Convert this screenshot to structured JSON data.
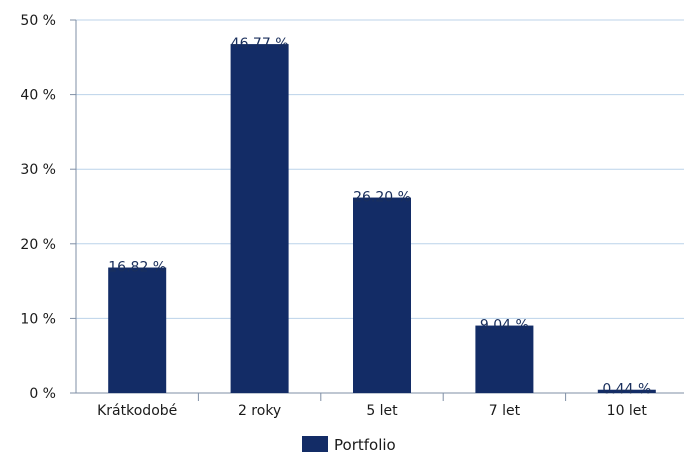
{
  "chart_data": {
    "type": "bar",
    "categories": [
      "Krátkodobé",
      "2 roky",
      "5 let",
      "7 let",
      "10 let"
    ],
    "series": [
      {
        "name": "Portfolio",
        "values": [
          16.82,
          46.77,
          26.2,
          9.04,
          0.44
        ]
      }
    ],
    "data_labels": [
      "16.82 %",
      "46.77 %",
      "26.20 %",
      "9.04 %",
      "0.44 %"
    ],
    "y_ticks": [
      "0 %",
      "10 %",
      "20 %",
      "30 %",
      "40 %",
      "50 %"
    ],
    "ylim": [
      0,
      50
    ],
    "grid": true,
    "legend": "bottom-center",
    "colors": {
      "bar": "#132c66",
      "grid": "#bcd3ea",
      "axis": "#7f8fa6"
    }
  }
}
